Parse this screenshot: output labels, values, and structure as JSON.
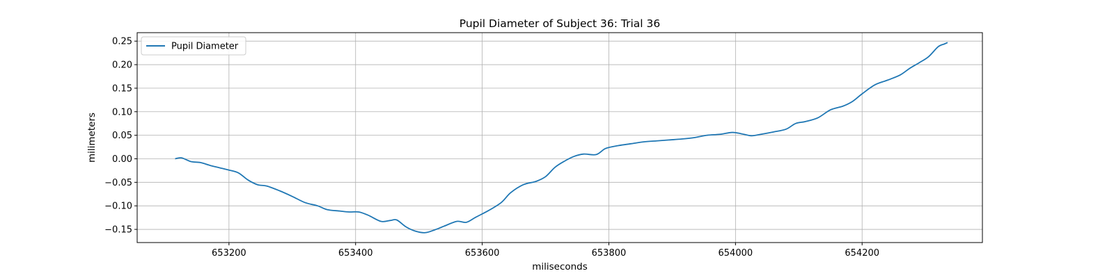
{
  "chart_data": {
    "type": "line",
    "title": "Pupil Diameter of Subject 36: Trial 36",
    "xlabel": "miliseconds",
    "ylabel": "milimeters",
    "xlim": [
      653055,
      654390
    ],
    "ylim": [
      -0.178,
      0.268
    ],
    "xticks": [
      653200,
      653400,
      653600,
      653800,
      654000,
      654200
    ],
    "yticks": [
      -0.15,
      -0.1,
      -0.05,
      0.0,
      0.05,
      0.1,
      0.15,
      0.2,
      0.25
    ],
    "ytick_labels": [
      "−0.15",
      "−0.10",
      "−0.05",
      "0.00",
      "0.05",
      "0.10",
      "0.15",
      "0.20",
      "0.25"
    ],
    "grid": true,
    "legend_position": "upper-left",
    "series": [
      {
        "name": "Pupil Diameter",
        "color": "#1f77b4",
        "points": [
          [
            653115,
            0.0
          ],
          [
            653125,
            0.002
          ],
          [
            653140,
            -0.006
          ],
          [
            653155,
            -0.008
          ],
          [
            653170,
            -0.014
          ],
          [
            653185,
            -0.019
          ],
          [
            653200,
            -0.024
          ],
          [
            653215,
            -0.03
          ],
          [
            653230,
            -0.045
          ],
          [
            653245,
            -0.055
          ],
          [
            653260,
            -0.058
          ],
          [
            653280,
            -0.068
          ],
          [
            653300,
            -0.08
          ],
          [
            653320,
            -0.093
          ],
          [
            653340,
            -0.1
          ],
          [
            653355,
            -0.108
          ],
          [
            653375,
            -0.111
          ],
          [
            653390,
            -0.113
          ],
          [
            653405,
            -0.113
          ],
          [
            653420,
            -0.12
          ],
          [
            653440,
            -0.133
          ],
          [
            653455,
            -0.131
          ],
          [
            653465,
            -0.13
          ],
          [
            653480,
            -0.145
          ],
          [
            653495,
            -0.154
          ],
          [
            653510,
            -0.157
          ],
          [
            653525,
            -0.151
          ],
          [
            653540,
            -0.143
          ],
          [
            653560,
            -0.133
          ],
          [
            653575,
            -0.135
          ],
          [
            653590,
            -0.124
          ],
          [
            653610,
            -0.11
          ],
          [
            653630,
            -0.093
          ],
          [
            653645,
            -0.072
          ],
          [
            653665,
            -0.055
          ],
          [
            653685,
            -0.048
          ],
          [
            653700,
            -0.038
          ],
          [
            653715,
            -0.018
          ],
          [
            653730,
            -0.005
          ],
          [
            653745,
            0.005
          ],
          [
            653760,
            0.01
          ],
          [
            653780,
            0.009
          ],
          [
            653795,
            0.022
          ],
          [
            653815,
            0.028
          ],
          [
            653835,
            0.032
          ],
          [
            653855,
            0.036
          ],
          [
            653875,
            0.038
          ],
          [
            653895,
            0.04
          ],
          [
            653915,
            0.042
          ],
          [
            653935,
            0.045
          ],
          [
            653955,
            0.05
          ],
          [
            653975,
            0.052
          ],
          [
            653995,
            0.056
          ],
          [
            654010,
            0.053
          ],
          [
            654025,
            0.049
          ],
          [
            654040,
            0.052
          ],
          [
            654060,
            0.057
          ],
          [
            654080,
            0.063
          ],
          [
            654095,
            0.075
          ],
          [
            654110,
            0.079
          ],
          [
            654130,
            0.087
          ],
          [
            654150,
            0.104
          ],
          [
            654170,
            0.112
          ],
          [
            654185,
            0.122
          ],
          [
            654200,
            0.138
          ],
          [
            654220,
            0.157
          ],
          [
            654240,
            0.167
          ],
          [
            654260,
            0.178
          ],
          [
            654275,
            0.192
          ],
          [
            654290,
            0.204
          ],
          [
            654305,
            0.217
          ],
          [
            654320,
            0.238
          ],
          [
            654330,
            0.244
          ],
          [
            654335,
            0.247
          ]
        ]
      }
    ]
  }
}
